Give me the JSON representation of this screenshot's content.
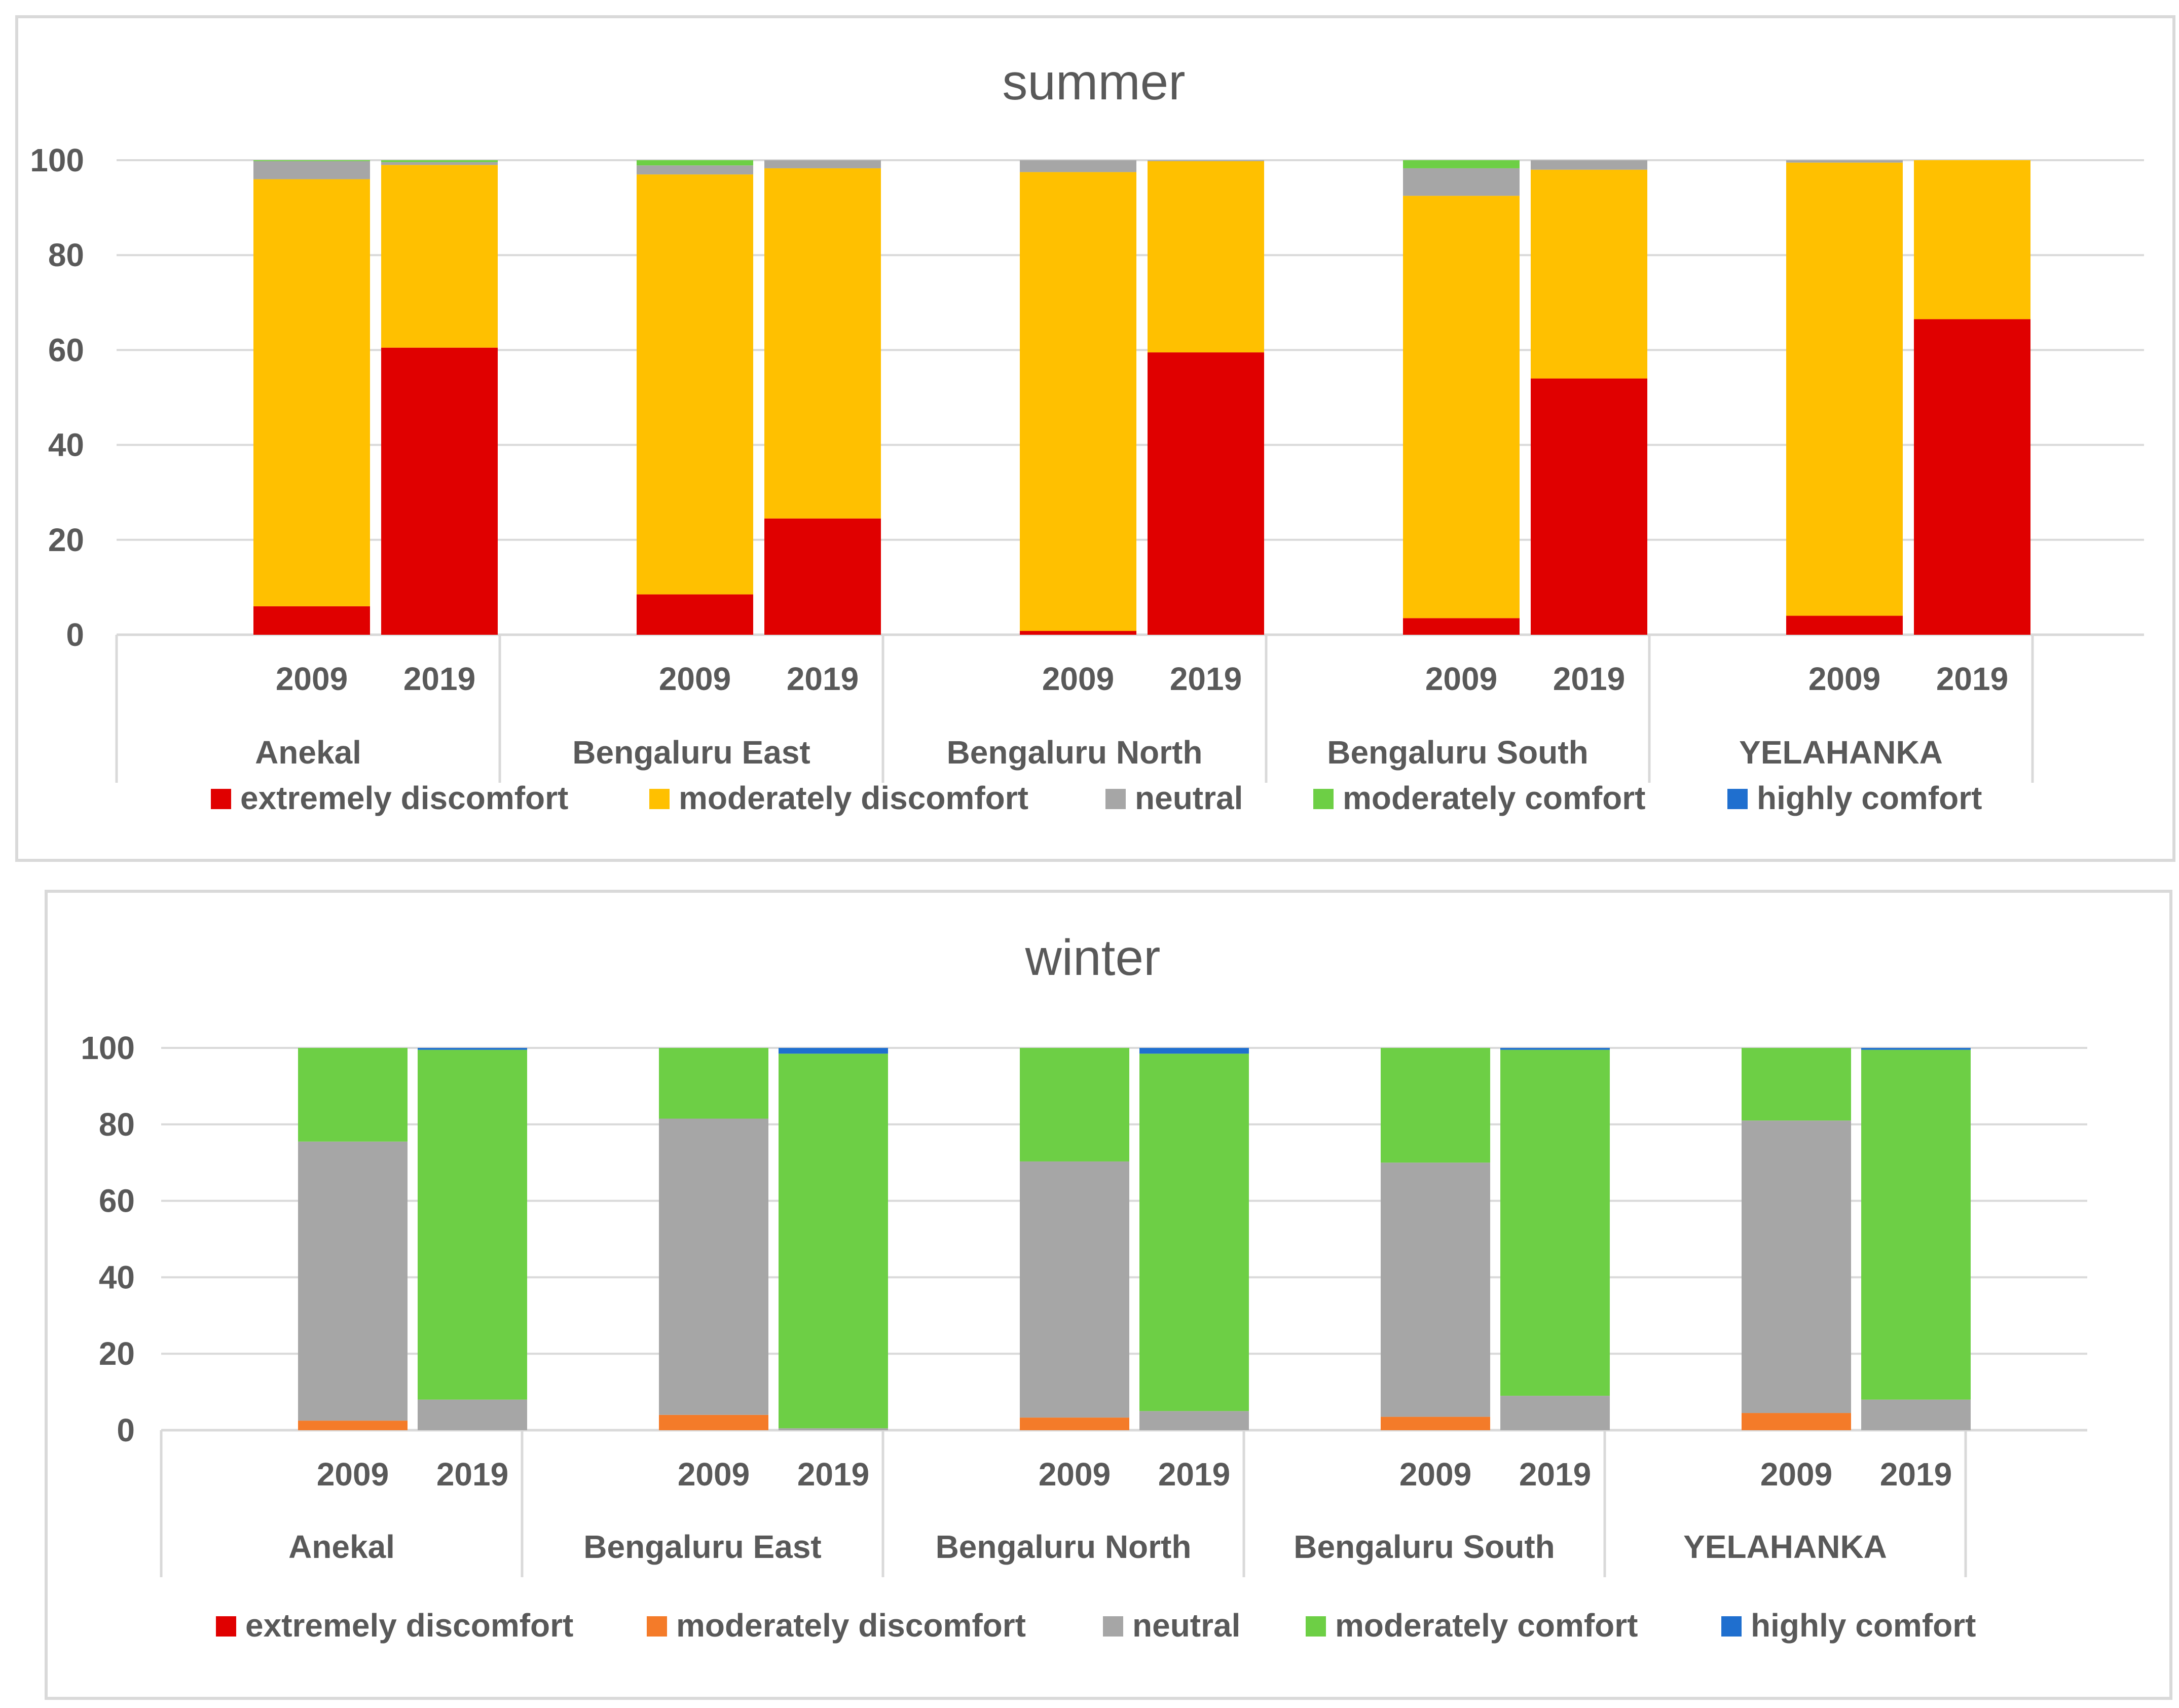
{
  "chart_data": [
    {
      "type": "bar",
      "stacked": true,
      "title": "summer",
      "ylim": [
        0,
        100
      ],
      "yticks": [
        "0",
        "20",
        "40",
        "60",
        "80",
        "100"
      ],
      "groups": [
        "Anekal",
        "Bengaluru East",
        "Bengaluru North",
        "Bengaluru South",
        "YELAHANKA"
      ],
      "years": [
        "2009",
        "2019"
      ],
      "series": [
        {
          "name": "extremely discomfort",
          "color": "#e00000",
          "values": [
            6,
            60.5,
            8.5,
            24.5,
            0.8,
            59.5,
            3.5,
            54,
            4,
            66.5
          ]
        },
        {
          "name": "moderately discomfort",
          "color": "#ffc000",
          "values": [
            90,
            38.5,
            88.5,
            73.8,
            96.7,
            40.3,
            89,
            44,
            95.5,
            33.5
          ]
        },
        {
          "name": "neutral",
          "color": "#a6a6a6",
          "values": [
            3.8,
            0.6,
            1.9,
            1.7,
            2.5,
            0.2,
            5.8,
            2,
            0.5,
            0
          ]
        },
        {
          "name": "moderately comfort",
          "color": "#6dcf45",
          "values": [
            0.2,
            0.4,
            1.1,
            0,
            0,
            0,
            1.7,
            0,
            0,
            0
          ]
        },
        {
          "name": "highly comfort",
          "color": "#1f6fcf",
          "values": [
            0,
            0,
            0,
            0,
            0,
            0,
            0,
            0,
            0,
            0
          ]
        }
      ]
    },
    {
      "type": "bar",
      "stacked": true,
      "title": "winter",
      "ylim": [
        0,
        100
      ],
      "yticks": [
        "0",
        "20",
        "40",
        "60",
        "80",
        "100"
      ],
      "groups": [
        "Anekal",
        "Bengaluru East",
        "Bengaluru North",
        "Bengaluru South",
        "YELAHANKA"
      ],
      "years": [
        "2009",
        "2019"
      ],
      "series": [
        {
          "name": "extremely discomfort",
          "color": "#e00000",
          "values": [
            0,
            0,
            0,
            0,
            0,
            0,
            0,
            0,
            0,
            0
          ]
        },
        {
          "name": "moderately discomfort",
          "color": "#f47b29",
          "values": [
            2.5,
            0,
            4,
            0,
            3.3,
            0,
            3.5,
            0,
            4.5,
            0
          ]
        },
        {
          "name": "neutral",
          "color": "#a6a6a6",
          "values": [
            73,
            8,
            77.5,
            0.5,
            67,
            5,
            66.5,
            9,
            76.5,
            8
          ]
        },
        {
          "name": "moderately comfort",
          "color": "#6dcf45",
          "values": [
            24.5,
            91.5,
            18.5,
            98,
            29.7,
            93.5,
            30,
            90.5,
            19,
            91.5
          ]
        },
        {
          "name": "highly comfort",
          "color": "#1f6fcf",
          "values": [
            0,
            0.5,
            0,
            1.5,
            0,
            1.5,
            0,
            0.5,
            0,
            0.5
          ]
        }
      ]
    }
  ]
}
